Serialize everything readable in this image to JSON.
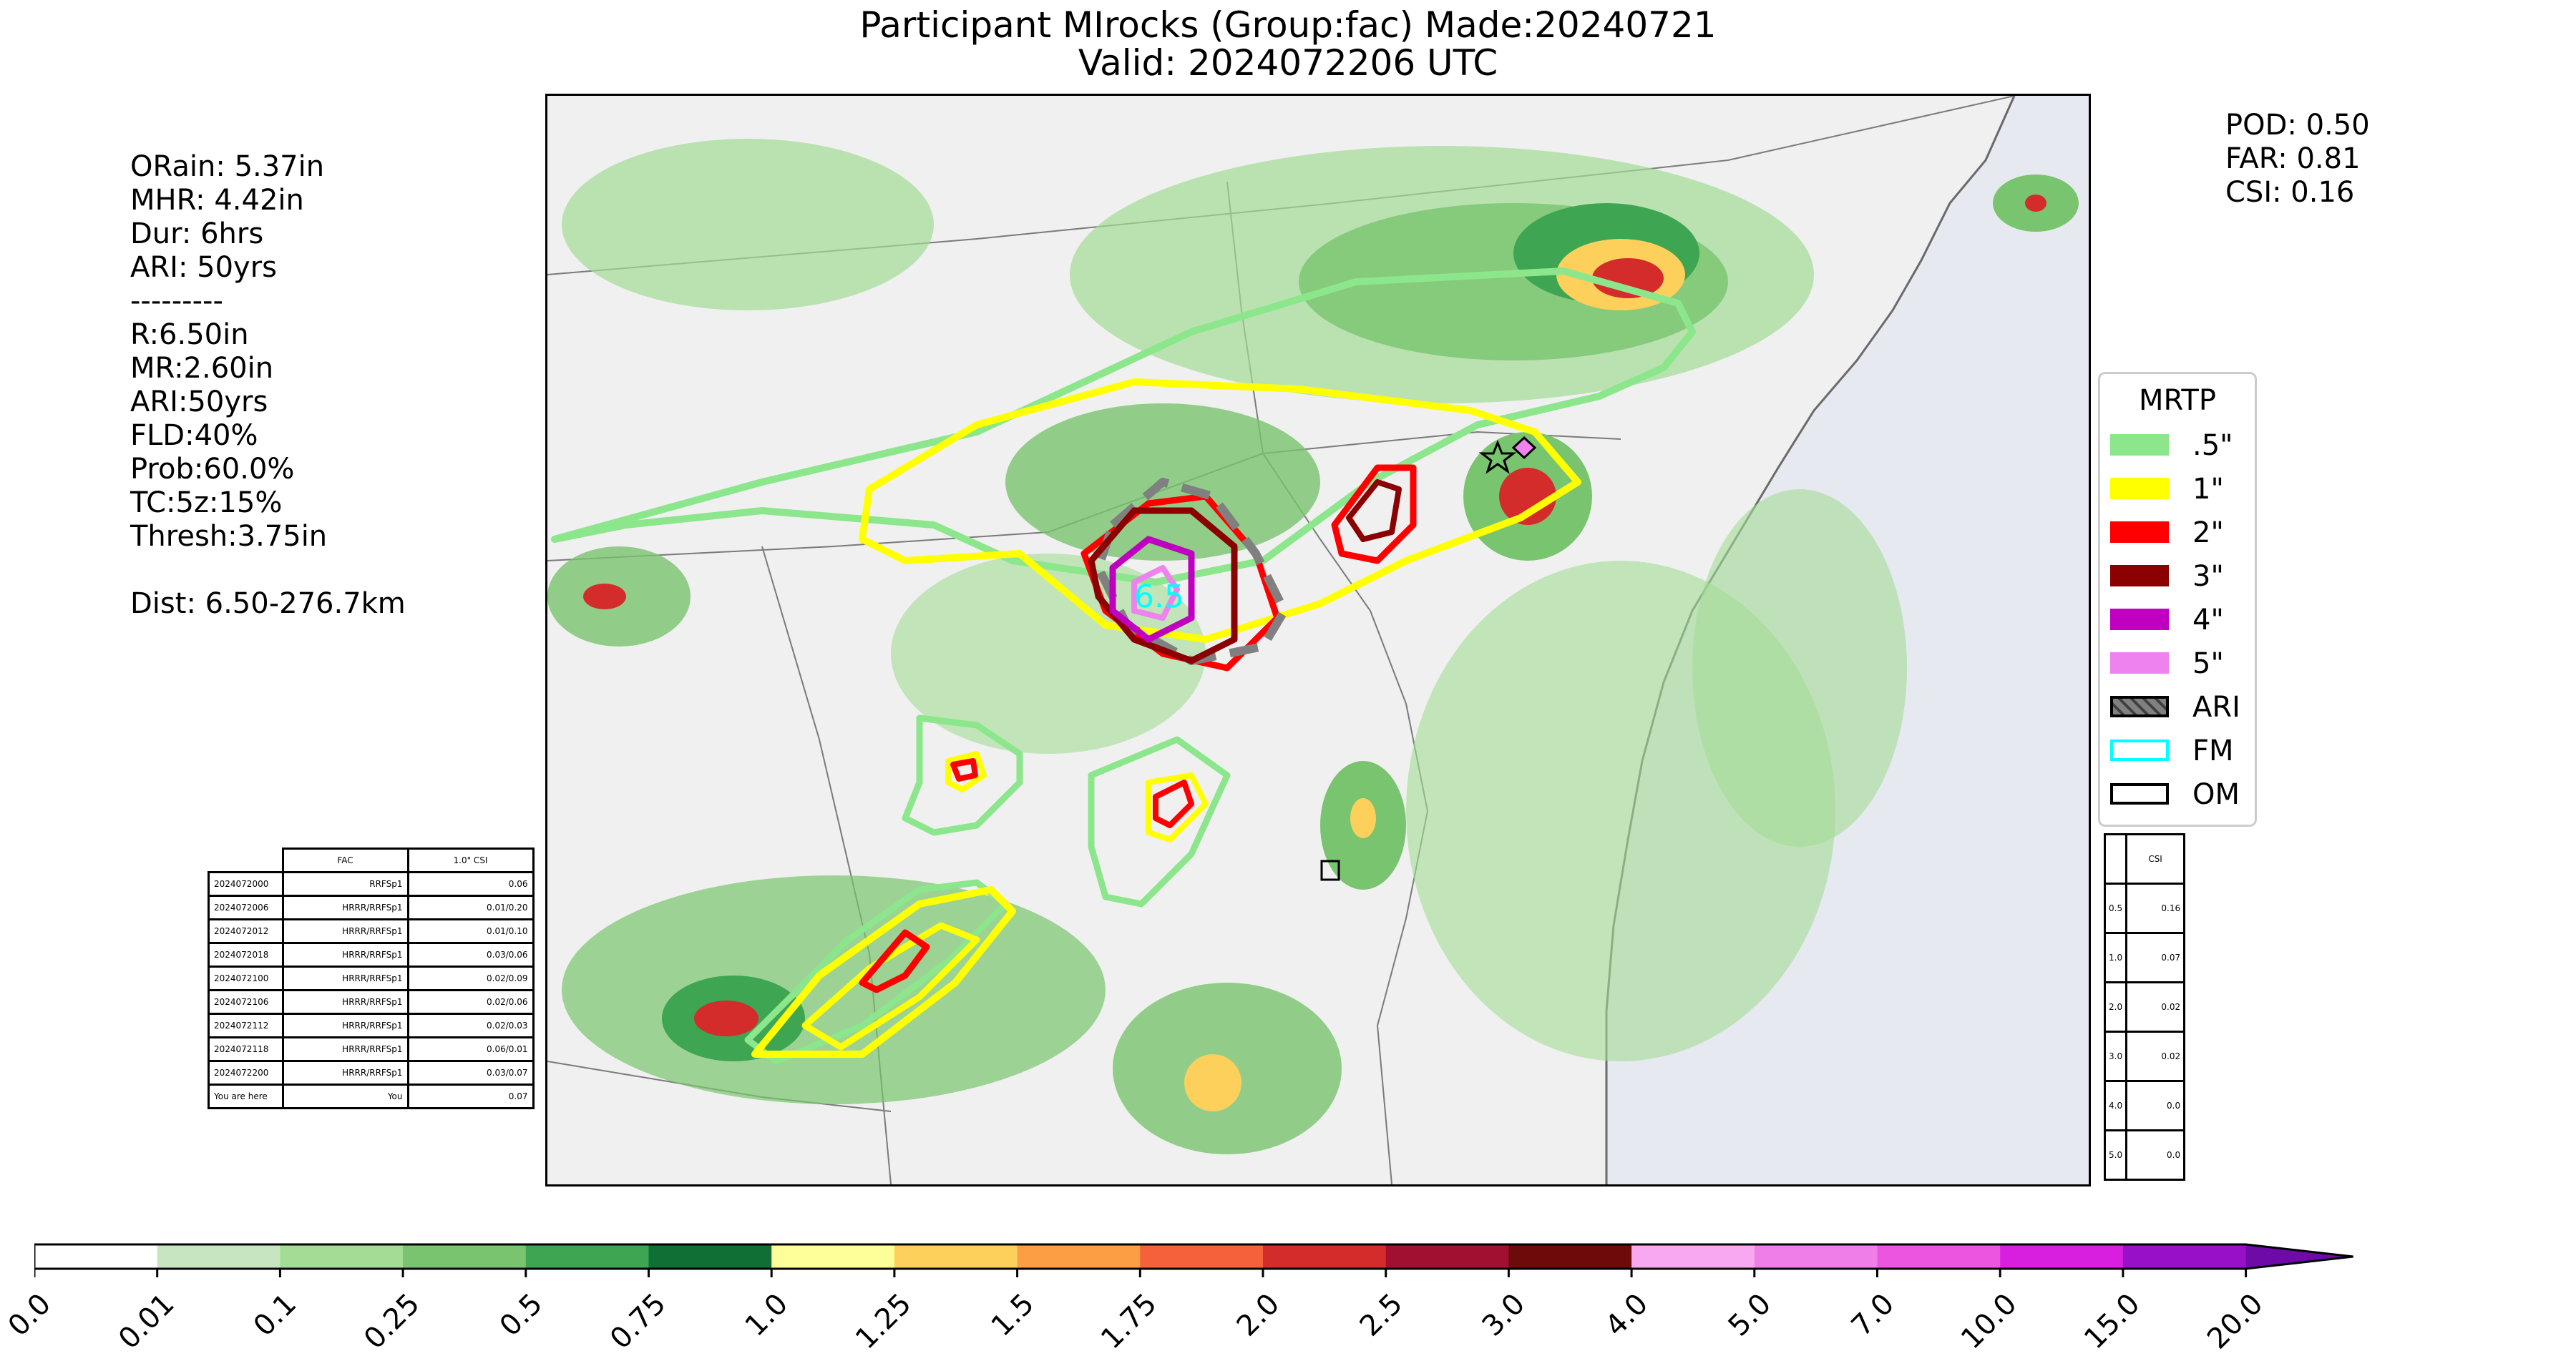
{
  "title": {
    "line1": "Participant MIrocks (Group:fac) Made:20240721",
    "line2": "Valid: 2024072206 UTC"
  },
  "stats_left": [
    "ORain: 5.37in",
    "MHR: 4.42in",
    "Dur: 6hrs",
    "ARI: 50yrs",
    "---------",
    "R:6.50in",
    "MR:2.60in",
    "ARI:50yrs",
    "FLD:40%",
    "Prob:60.0%",
    "TC:5z:15%",
    "Thresh:3.75in",
    "",
    "Dist: 6.50-276.7km"
  ],
  "stats_right": [
    "POD: 0.50",
    "FAR: 0.81",
    "CSI: 0.16"
  ],
  "map_labels": {
    "fm_label": "6.5"
  },
  "legend": {
    "title": "MRTP",
    "items": [
      {
        "label": ".5\"",
        "color": "#8ce68c",
        "style": "fill"
      },
      {
        "label": "1\"",
        "color": "#ffff00",
        "style": "fill"
      },
      {
        "label": "2\"",
        "color": "#ff0000",
        "style": "fill"
      },
      {
        "label": "3\"",
        "color": "#8b0000",
        "style": "fill"
      },
      {
        "label": "4\"",
        "color": "#c000c0",
        "style": "fill"
      },
      {
        "label": "5\"",
        "color": "#ee82ee",
        "style": "fill"
      },
      {
        "label": "ARI",
        "color": "#808080",
        "style": "hatch"
      },
      {
        "label": "FM",
        "color": "#00ffff",
        "style": "outline"
      },
      {
        "label": "OM",
        "color": "#000000",
        "style": "outline"
      }
    ]
  },
  "history_table": {
    "header": [
      "",
      "FAC",
      "1.0\" CSI"
    ],
    "rows": [
      [
        "2024072000",
        "RRFSp1",
        "0.06"
      ],
      [
        "2024072006",
        "HRRR/RRFSp1",
        "0.01/0.20"
      ],
      [
        "2024072012",
        "HRRR/RRFSp1",
        "0.01/0.10"
      ],
      [
        "2024072018",
        "HRRR/RRFSp1",
        "0.03/0.06"
      ],
      [
        "2024072100",
        "HRRR/RRFSp1",
        "0.02/0.09"
      ],
      [
        "2024072106",
        "HRRR/RRFSp1",
        "0.02/0.06"
      ],
      [
        "2024072112",
        "HRRR/RRFSp1",
        "0.02/0.03"
      ],
      [
        "2024072118",
        "HRRR/RRFSp1",
        "0.06/0.01"
      ],
      [
        "2024072200",
        "HRRR/RRFSp1",
        "0.03/0.07"
      ],
      [
        "You are here",
        "You",
        "0.07"
      ]
    ]
  },
  "csi_table": {
    "header": [
      "",
      "CSI"
    ],
    "rows": [
      [
        "0.5",
        "0.16"
      ],
      [
        "1.0",
        "0.07"
      ],
      [
        "2.0",
        "0.02"
      ],
      [
        "3.0",
        "0.02"
      ],
      [
        "4.0",
        "0.0"
      ],
      [
        "5.0",
        "0.0"
      ]
    ]
  },
  "colorbar": {
    "ticks": [
      "0.0",
      "0.01",
      "0.1",
      "0.25",
      "0.5",
      "0.75",
      "1.0",
      "1.25",
      "1.5",
      "1.75",
      "2.0",
      "2.5",
      "3.0",
      "4.0",
      "5.0",
      "7.0",
      "10.0",
      "15.0",
      "20.0"
    ],
    "colors": [
      "#ffffff",
      "#c7e6c0",
      "#a3dc95",
      "#79c46e",
      "#3ea553",
      "#0f6f34",
      "#ffff99",
      "#fdd05c",
      "#fc9f44",
      "#f4613b",
      "#d42b2b",
      "#a11030",
      "#6d0a0a",
      "#f7a8f0",
      "#f07ee8",
      "#eb55e0",
      "#d81fdf",
      "#9810c8"
    ],
    "extend_color": "#6d0aa8"
  }
}
